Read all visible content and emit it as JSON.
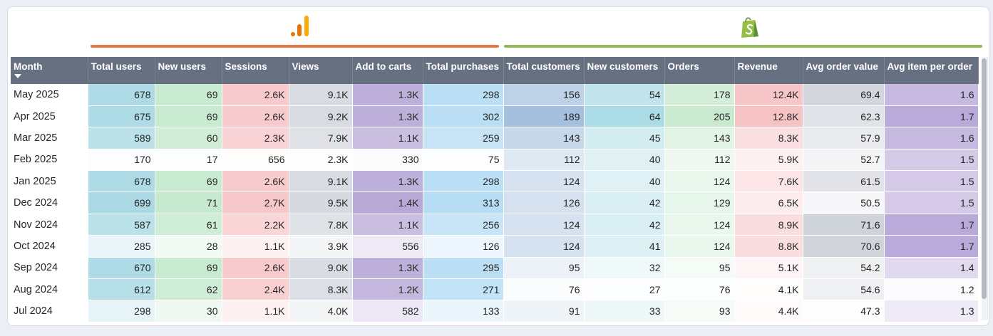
{
  "columns": [
    "Month",
    "Total users",
    "New users",
    "Sessions",
    "Views",
    "Add to carts",
    "Total purchases",
    "Total customers",
    "New customers",
    "Orders",
    "Revenue",
    "Avg order value",
    "Avg item per order"
  ],
  "rows": [
    {
      "month": "May 2025",
      "cells": [
        "678",
        "69",
        "2.6K",
        "9.1K",
        "1.3K",
        "298",
        "156",
        "54",
        "178",
        "12.4K",
        "69.4",
        "1.6"
      ]
    },
    {
      "month": "Apr 2025",
      "cells": [
        "675",
        "69",
        "2.6K",
        "9.2K",
        "1.3K",
        "302",
        "189",
        "64",
        "205",
        "12.8K",
        "62.3",
        "1.7"
      ]
    },
    {
      "month": "Mar 2025",
      "cells": [
        "589",
        "60",
        "2.3K",
        "7.9K",
        "1.1K",
        "259",
        "143",
        "45",
        "143",
        "8.3K",
        "57.9",
        "1.6"
      ]
    },
    {
      "month": "Feb 2025",
      "cells": [
        "170",
        "17",
        "656",
        "2.3K",
        "330",
        "75",
        "112",
        "40",
        "112",
        "5.9K",
        "52.7",
        "1.5"
      ]
    },
    {
      "month": "Jan 2025",
      "cells": [
        "678",
        "69",
        "2.6K",
        "9.1K",
        "1.3K",
        "298",
        "124",
        "40",
        "124",
        "7.6K",
        "61.5",
        "1.5"
      ]
    },
    {
      "month": "Dec 2024",
      "cells": [
        "699",
        "71",
        "2.7K",
        "9.5K",
        "1.4K",
        "313",
        "126",
        "42",
        "129",
        "6.5K",
        "50.5",
        "1.5"
      ]
    },
    {
      "month": "Nov 2024",
      "cells": [
        "587",
        "61",
        "2.2K",
        "7.8K",
        "1.1K",
        "256",
        "124",
        "42",
        "124",
        "8.9K",
        "71.6",
        "1.7"
      ]
    },
    {
      "month": "Oct 2024",
      "cells": [
        "285",
        "28",
        "1.1K",
        "3.9K",
        "556",
        "126",
        "124",
        "41",
        "124",
        "8.8K",
        "70.6",
        "1.7"
      ]
    },
    {
      "month": "Sep 2024",
      "cells": [
        "670",
        "69",
        "2.6K",
        "9.0K",
        "1.3K",
        "295",
        "95",
        "32",
        "95",
        "5.1K",
        "54.2",
        "1.4"
      ]
    },
    {
      "month": "Aug 2024",
      "cells": [
        "612",
        "62",
        "2.4K",
        "8.3K",
        "1.2K",
        "271",
        "76",
        "27",
        "76",
        "4.1K",
        "54.6",
        "1.2"
      ]
    },
    {
      "month": "Jul 2024",
      "cells": [
        "298",
        "30",
        "1.1K",
        "4.0K",
        "582",
        "133",
        "91",
        "33",
        "93",
        "4.4K",
        "47.3",
        "1.3"
      ]
    }
  ],
  "heat_colors": [
    [
      0,
      "#aad9e4",
      96
    ],
    [
      1,
      "#c6e9cf",
      90
    ],
    [
      2,
      "#f7c8cb",
      90
    ],
    [
      3,
      "#d6d9e0",
      100
    ],
    [
      4,
      "#b7a8d6",
      96
    ],
    [
      5,
      "#b7ddf4",
      100
    ],
    [
      6,
      "#a5c0de",
      100
    ],
    [
      7,
      "#abdbe4",
      100
    ],
    [
      8,
      "#c9eacf",
      100
    ],
    [
      9,
      "#f6c3c5",
      100
    ],
    [
      10,
      "#cfd3da",
      100
    ],
    [
      11,
      "#b9aad9",
      100
    ]
  ],
  "heat_ranges": [
    [
      170,
      699
    ],
    [
      17,
      71
    ],
    [
      656,
      2700
    ],
    [
      2300,
      9500
    ],
    [
      330,
      1400
    ],
    [
      75,
      313
    ],
    [
      76,
      189
    ],
    [
      27,
      64
    ],
    [
      76,
      205
    ],
    [
      4100,
      12800
    ],
    [
      47.3,
      71.6
    ],
    [
      1.2,
      1.7
    ]
  ],
  "sort": {
    "column": "Month",
    "direction": "descending"
  },
  "sources": {
    "analytics_icon": "analytics-bars-icon",
    "store_icon": "shopping-bag-icon",
    "analytics_color": "#e07a3f",
    "store_color": "#93b75d"
  }
}
